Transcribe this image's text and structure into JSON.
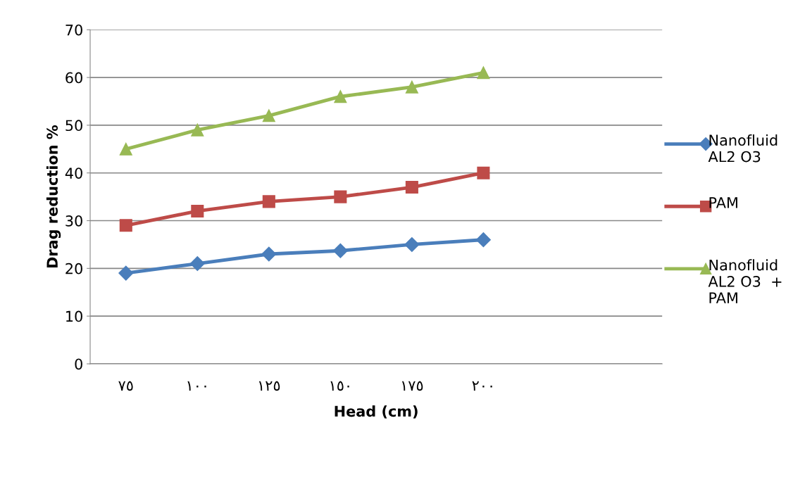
{
  "chart_data": {
    "type": "line",
    "xlabel": "Head (cm)",
    "ylabel": "Drag reduction %",
    "categories": [
      "٧٥",
      "١٠٠",
      "١٢٥",
      "١٥٠",
      "١٧٥",
      "٢٠٠",
      null,
      null
    ],
    "series": [
      {
        "name": "Nanofluid AL2 O3",
        "color": "#4a7ebb",
        "marker": "diamond",
        "values": [
          19,
          21,
          23,
          23.7,
          25,
          26,
          null,
          null
        ]
      },
      {
        "name": "PAM",
        "color": "#be4b48",
        "marker": "square",
        "values": [
          29,
          32,
          34,
          35,
          37,
          40,
          null,
          null
        ]
      },
      {
        "name": "Nanofluid AL2 O3  + PAM",
        "color": "#98b954",
        "marker": "triangle",
        "values": [
          45,
          49,
          52,
          56,
          58,
          61,
          null,
          null
        ]
      }
    ],
    "ylim": [
      0,
      70
    ],
    "yticks": [
      0,
      10,
      20,
      30,
      40,
      50,
      60,
      70
    ],
    "grid": "y",
    "legend": "right",
    "line_style": "solid"
  }
}
